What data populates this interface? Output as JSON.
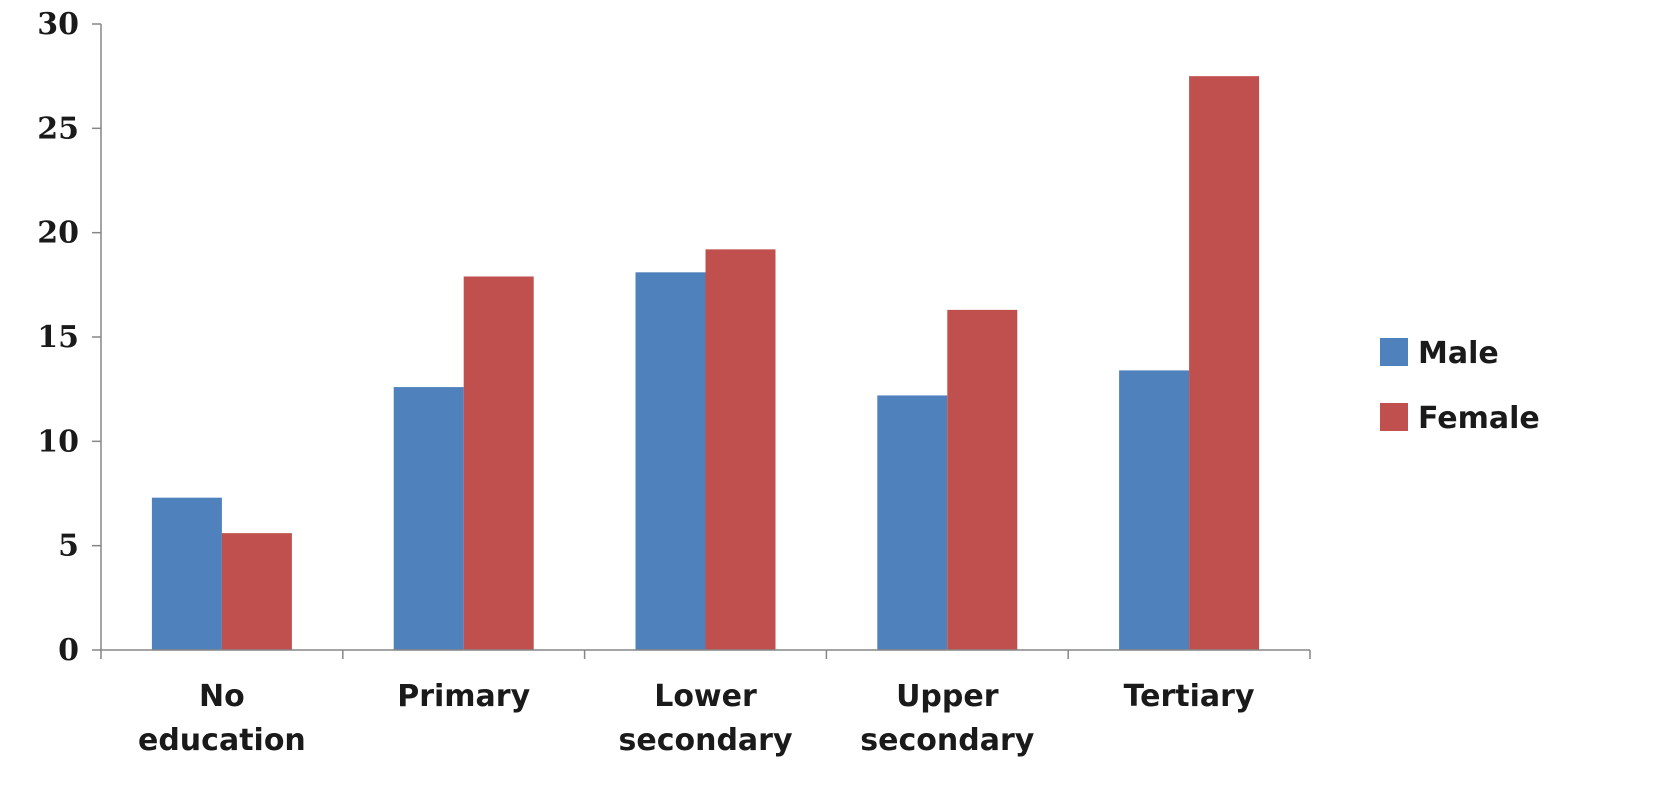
{
  "chart_data": {
    "type": "bar",
    "categories": [
      [
        "No",
        "education"
      ],
      [
        "Primary"
      ],
      [
        "Lower",
        "secondary"
      ],
      [
        "Upper",
        "secondary"
      ],
      [
        "Tertiary"
      ]
    ],
    "series": [
      {
        "name": "Male",
        "color": "#4f81bd",
        "values": [
          7.3,
          12.6,
          18.1,
          12.2,
          13.4
        ]
      },
      {
        "name": "Female",
        "color": "#c0504d",
        "values": [
          5.6,
          17.9,
          19.2,
          16.3,
          27.5
        ]
      }
    ],
    "yticks": [
      "0",
      "5",
      "10",
      "15",
      "20",
      "25",
      "30"
    ],
    "ylim": [
      0,
      30
    ],
    "grid": false,
    "legend_position": "right"
  }
}
